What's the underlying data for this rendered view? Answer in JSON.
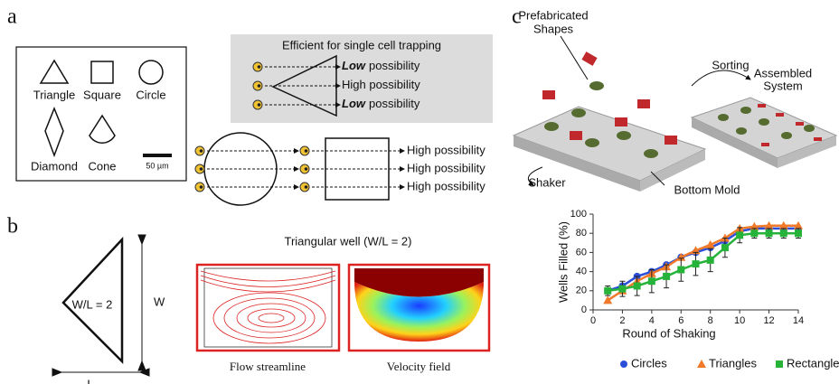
{
  "panel_labels": [
    "a",
    "b",
    "c"
  ],
  "panel_a": {
    "shapes": [
      "Triangle",
      "Square",
      "Circle",
      "Diamond",
      "Cone"
    ],
    "scale_bar": "50 µm",
    "box_title": "Efficient for single cell trapping",
    "triangle_rows": [
      {
        "emphasis": "Low",
        "text": "possibility"
      },
      {
        "text": "High possibility"
      },
      {
        "emphasis": "Low",
        "text": "possibility"
      }
    ],
    "other_rows": [
      "High possibility",
      "High possibility",
      "High possibility"
    ]
  },
  "panel_b": {
    "ratio_label": "W/L = 2",
    "width_label": "W",
    "length_label": "L",
    "title": "Triangular well (W/L = 2)",
    "captions": [
      "Flow streamline",
      "Velocity field"
    ]
  },
  "panel_c": {
    "prefab": [
      "Prefabricated",
      "Shapes"
    ],
    "sorting": "Sorting",
    "assembled": [
      "Assembled",
      "System"
    ],
    "shaker": "Shaker",
    "mold": "Bottom Mold"
  },
  "chart_data": {
    "type": "line",
    "xlabel": "Round of Shaking",
    "ylabel": "Wells Filled (%)",
    "x": [
      1,
      2,
      3,
      4,
      5,
      6,
      7,
      8,
      9,
      10,
      11,
      12,
      13,
      14
    ],
    "series": [
      {
        "name": "Circles",
        "color": "#2b4fd8",
        "marker": "circle",
        "values": [
          20,
          25,
          35,
          40,
          47,
          55,
          60,
          65,
          72,
          82,
          85,
          85,
          85,
          85
        ]
      },
      {
        "name": "Triangles",
        "color": "#f07a2a",
        "marker": "triangle",
        "values": [
          10,
          20,
          30,
          38,
          45,
          55,
          62,
          68,
          75,
          85,
          87,
          88,
          88,
          88
        ]
      },
      {
        "name": "Rectangles",
        "color": "#27b33a",
        "marker": "square",
        "values": [
          20,
          22,
          25,
          30,
          35,
          42,
          48,
          52,
          65,
          78,
          80,
          80,
          80,
          80
        ],
        "errors": [
          5,
          8,
          10,
          12,
          12,
          12,
          12,
          12,
          10,
          8,
          5,
          5,
          5,
          5
        ]
      }
    ],
    "xlim": [
      0,
      14
    ],
    "xticks": [
      0,
      2,
      4,
      6,
      8,
      10,
      12,
      14
    ],
    "ylim": [
      0,
      100
    ],
    "yticks": [
      0,
      20,
      40,
      60,
      80,
      100
    ],
    "legend": "bottom"
  }
}
